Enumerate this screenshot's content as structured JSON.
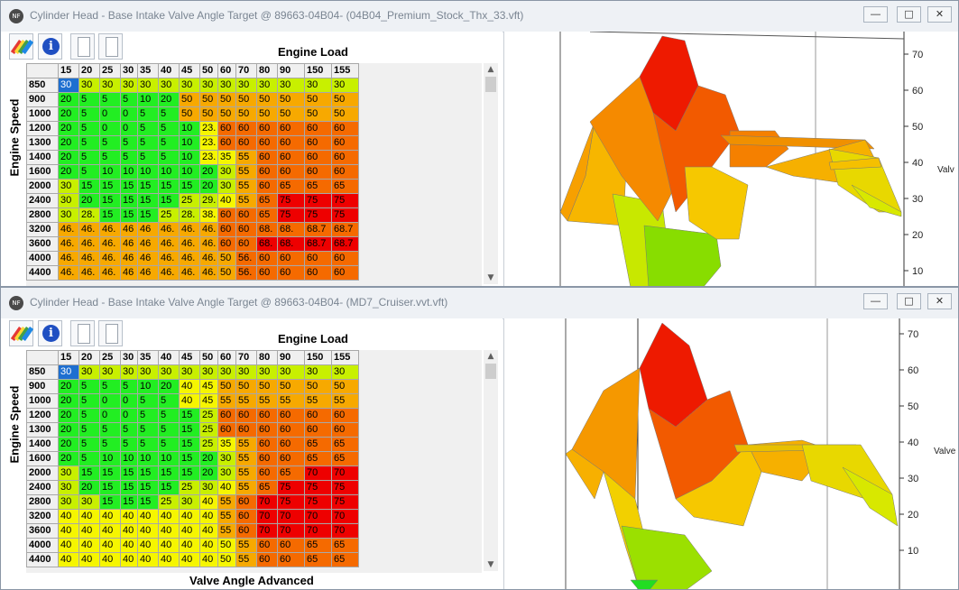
{
  "colors": {
    "c_lime": "#c8f000",
    "c_green": "#22ee22",
    "c_yellow": "#f6f600",
    "c_amber": "#f7a900",
    "c_orange": "#f56a00",
    "c_red": "#ee0000",
    "selection": "#1e6fd0"
  },
  "window_top": {
    "title": "Cylinder Head - Base Intake Valve Angle Target @ 89663-04B04- (04B04_Premium_Stock_Thx_33.vft)",
    "toolbar_icons": [
      "paint-palette-icon",
      "info-icon",
      "blank-page-icon",
      "blank-page-icon"
    ],
    "info_glyph": "i",
    "column_axis_label": "Engine Load",
    "row_axis_label": "Engine Speed",
    "columns": [
      "15",
      "20",
      "25",
      "30",
      "35",
      "40",
      "45",
      "50",
      "60",
      "70",
      "80",
      "90",
      "150",
      "155"
    ],
    "rows": [
      {
        "speed": "850",
        "cells": [
          "30",
          "30",
          "30",
          "30",
          "30",
          "30",
          "30",
          "30",
          "30",
          "30",
          "30",
          "30",
          "30",
          "30"
        ]
      },
      {
        "speed": "900",
        "cells": [
          "20",
          "5",
          "5",
          "5",
          "10",
          "20",
          "50",
          "50",
          "50",
          "50",
          "50",
          "50",
          "50",
          "50"
        ]
      },
      {
        "speed": "1000",
        "cells": [
          "20",
          "5",
          "0",
          "0",
          "5",
          "5",
          "50",
          "50",
          "50",
          "50",
          "50",
          "50",
          "50",
          "50"
        ]
      },
      {
        "speed": "1200",
        "cells": [
          "20",
          "5",
          "0",
          "0",
          "5",
          "5",
          "10",
          "23.",
          "60",
          "60",
          "60",
          "60",
          "60",
          "60"
        ]
      },
      {
        "speed": "1300",
        "cells": [
          "20",
          "5",
          "5",
          "5",
          "5",
          "5",
          "10",
          "23.",
          "60",
          "60",
          "60",
          "60",
          "60",
          "60"
        ]
      },
      {
        "speed": "1400",
        "cells": [
          "20",
          "5",
          "5",
          "5",
          "5",
          "5",
          "10",
          "23.",
          "35",
          "55",
          "60",
          "60",
          "60",
          "60"
        ]
      },
      {
        "speed": "1600",
        "cells": [
          "20",
          "5",
          "10",
          "10",
          "10",
          "10",
          "10",
          "20",
          "30",
          "55",
          "60",
          "60",
          "60",
          "60"
        ]
      },
      {
        "speed": "2000",
        "cells": [
          "30",
          "15",
          "15",
          "15",
          "15",
          "15",
          "15",
          "20",
          "30",
          "55",
          "60",
          "65",
          "65",
          "65"
        ]
      },
      {
        "speed": "2400",
        "cells": [
          "30",
          "20",
          "15",
          "15",
          "15",
          "15",
          "25",
          "29.",
          "40",
          "55",
          "65",
          "75",
          "75",
          "75"
        ]
      },
      {
        "speed": "2800",
        "cells": [
          "30",
          "28.",
          "15",
          "15",
          "15",
          "25",
          "28.",
          "38.",
          "60",
          "60",
          "65",
          "75",
          "75",
          "75"
        ]
      },
      {
        "speed": "3200",
        "cells": [
          "46.",
          "46.",
          "46.",
          "46",
          "46",
          "46.",
          "46.",
          "46.",
          "60",
          "60",
          "68.",
          "68.",
          "68.7",
          "68.7"
        ]
      },
      {
        "speed": "3600",
        "cells": [
          "46.",
          "46.",
          "46.",
          "46",
          "46",
          "46.",
          "46.",
          "46.",
          "60",
          "60",
          "68.",
          "68.",
          "68.7",
          "68.7"
        ]
      },
      {
        "speed": "4000",
        "cells": [
          "46.",
          "46.",
          "46.",
          "46",
          "46",
          "46.",
          "46.",
          "46.",
          "50",
          "56.",
          "60",
          "60",
          "60",
          "60"
        ]
      },
      {
        "speed": "4400",
        "cells": [
          "46.",
          "46.",
          "46.",
          "46",
          "46",
          "46.",
          "46.",
          "46.",
          "50",
          "56.",
          "60",
          "60",
          "60",
          "60"
        ]
      }
    ],
    "row_colors": [
      [
        "c_lime",
        "c_lime",
        "c_lime",
        "c_lime",
        "c_lime",
        "c_lime",
        "c_lime",
        "c_lime",
        "c_lime",
        "c_lime",
        "c_lime",
        "c_lime",
        "c_lime",
        "c_lime"
      ],
      [
        "c_green",
        "c_green",
        "c_green",
        "c_green",
        "c_green",
        "c_green",
        "c_amber",
        "c_amber",
        "c_amber",
        "c_amber",
        "c_amber",
        "c_amber",
        "c_amber",
        "c_amber"
      ],
      [
        "c_green",
        "c_green",
        "c_green",
        "c_green",
        "c_green",
        "c_green",
        "c_amber",
        "c_amber",
        "c_amber",
        "c_amber",
        "c_amber",
        "c_amber",
        "c_amber",
        "c_amber"
      ],
      [
        "c_green",
        "c_green",
        "c_green",
        "c_green",
        "c_green",
        "c_green",
        "c_green",
        "c_yellow",
        "c_orange",
        "c_orange",
        "c_orange",
        "c_orange",
        "c_orange",
        "c_orange"
      ],
      [
        "c_green",
        "c_green",
        "c_green",
        "c_green",
        "c_green",
        "c_green",
        "c_green",
        "c_yellow",
        "c_orange",
        "c_orange",
        "c_orange",
        "c_orange",
        "c_orange",
        "c_orange"
      ],
      [
        "c_green",
        "c_green",
        "c_green",
        "c_green",
        "c_green",
        "c_green",
        "c_green",
        "c_yellow",
        "c_yellow",
        "c_amber",
        "c_orange",
        "c_orange",
        "c_orange",
        "c_orange"
      ],
      [
        "c_green",
        "c_green",
        "c_green",
        "c_green",
        "c_green",
        "c_green",
        "c_green",
        "c_green",
        "c_lime",
        "c_amber",
        "c_orange",
        "c_orange",
        "c_orange",
        "c_orange"
      ],
      [
        "c_lime",
        "c_green",
        "c_green",
        "c_green",
        "c_green",
        "c_green",
        "c_green",
        "c_green",
        "c_lime",
        "c_amber",
        "c_orange",
        "c_orange",
        "c_orange",
        "c_orange"
      ],
      [
        "c_lime",
        "c_green",
        "c_green",
        "c_green",
        "c_green",
        "c_green",
        "c_lime",
        "c_lime",
        "c_yellow",
        "c_amber",
        "c_orange",
        "c_red",
        "c_red",
        "c_red"
      ],
      [
        "c_lime",
        "c_lime",
        "c_green",
        "c_green",
        "c_green",
        "c_lime",
        "c_lime",
        "c_yellow",
        "c_orange",
        "c_orange",
        "c_orange",
        "c_red",
        "c_red",
        "c_red"
      ],
      [
        "c_amber",
        "c_amber",
        "c_amber",
        "c_amber",
        "c_amber",
        "c_amber",
        "c_amber",
        "c_amber",
        "c_orange",
        "c_orange",
        "c_orange",
        "c_orange",
        "c_orange",
        "c_orange"
      ],
      [
        "c_amber",
        "c_amber",
        "c_amber",
        "c_amber",
        "c_amber",
        "c_amber",
        "c_amber",
        "c_amber",
        "c_orange",
        "c_orange",
        "c_red",
        "c_red",
        "c_red",
        "c_red"
      ],
      [
        "c_amber",
        "c_amber",
        "c_amber",
        "c_amber",
        "c_amber",
        "c_amber",
        "c_amber",
        "c_amber",
        "c_amber",
        "c_orange",
        "c_orange",
        "c_orange",
        "c_orange",
        "c_orange"
      ],
      [
        "c_amber",
        "c_amber",
        "c_amber",
        "c_amber",
        "c_amber",
        "c_amber",
        "c_amber",
        "c_amber",
        "c_amber",
        "c_orange",
        "c_orange",
        "c_orange",
        "c_orange",
        "c_orange"
      ]
    ],
    "axis_ticks": [
      "70",
      "60",
      "50",
      "40",
      "30",
      "20",
      "10"
    ],
    "axis_label": "Valv"
  },
  "window_bottom": {
    "title": "Cylinder Head - Base Intake Valve Angle Target @ 89663-04B04- (MD7_Cruiser.vvt.vft)",
    "toolbar_icons": [
      "paint-palette-icon",
      "info-icon",
      "blank-page-icon",
      "blank-page-icon"
    ],
    "info_glyph": "i",
    "column_axis_label": "Engine Load",
    "row_axis_label": "Engine Speed",
    "bottom_label": "Valve Angle Advanced",
    "columns": [
      "15",
      "20",
      "25",
      "30",
      "35",
      "40",
      "45",
      "50",
      "60",
      "70",
      "80",
      "90",
      "150",
      "155"
    ],
    "rows": [
      {
        "speed": "850",
        "cells": [
          "30",
          "30",
          "30",
          "30",
          "30",
          "30",
          "30",
          "30",
          "30",
          "30",
          "30",
          "30",
          "30",
          "30"
        ]
      },
      {
        "speed": "900",
        "cells": [
          "20",
          "5",
          "5",
          "5",
          "10",
          "20",
          "40",
          "45",
          "50",
          "50",
          "50",
          "50",
          "50",
          "50"
        ]
      },
      {
        "speed": "1000",
        "cells": [
          "20",
          "5",
          "0",
          "0",
          "5",
          "5",
          "40",
          "45",
          "55",
          "55",
          "55",
          "55",
          "55",
          "55"
        ]
      },
      {
        "speed": "1200",
        "cells": [
          "20",
          "5",
          "0",
          "0",
          "5",
          "5",
          "15",
          "25",
          "60",
          "60",
          "60",
          "60",
          "60",
          "60"
        ]
      },
      {
        "speed": "1300",
        "cells": [
          "20",
          "5",
          "5",
          "5",
          "5",
          "5",
          "15",
          "25",
          "60",
          "60",
          "60",
          "60",
          "60",
          "60"
        ]
      },
      {
        "speed": "1400",
        "cells": [
          "20",
          "5",
          "5",
          "5",
          "5",
          "5",
          "15",
          "25",
          "35",
          "55",
          "60",
          "60",
          "65",
          "65"
        ]
      },
      {
        "speed": "1600",
        "cells": [
          "20",
          "5",
          "10",
          "10",
          "10",
          "10",
          "15",
          "20",
          "30",
          "55",
          "60",
          "60",
          "65",
          "65"
        ]
      },
      {
        "speed": "2000",
        "cells": [
          "30",
          "15",
          "15",
          "15",
          "15",
          "15",
          "15",
          "20",
          "30",
          "55",
          "60",
          "65",
          "70",
          "70"
        ]
      },
      {
        "speed": "2400",
        "cells": [
          "30",
          "20",
          "15",
          "15",
          "15",
          "15",
          "25",
          "30",
          "40",
          "55",
          "65",
          "75",
          "75",
          "75"
        ]
      },
      {
        "speed": "2800",
        "cells": [
          "30",
          "30",
          "15",
          "15",
          "15",
          "25",
          "30",
          "40",
          "55",
          "60",
          "70",
          "75",
          "75",
          "75"
        ]
      },
      {
        "speed": "3200",
        "cells": [
          "40",
          "40",
          "40",
          "40",
          "40",
          "40",
          "40",
          "40",
          "55",
          "60",
          "70",
          "70",
          "70",
          "70"
        ]
      },
      {
        "speed": "3600",
        "cells": [
          "40",
          "40",
          "40",
          "40",
          "40",
          "40",
          "40",
          "40",
          "55",
          "60",
          "70",
          "70",
          "70",
          "70"
        ]
      },
      {
        "speed": "4000",
        "cells": [
          "40",
          "40",
          "40",
          "40",
          "40",
          "40",
          "40",
          "40",
          "50",
          "55",
          "60",
          "60",
          "65",
          "65"
        ]
      },
      {
        "speed": "4400",
        "cells": [
          "40",
          "40",
          "40",
          "40",
          "40",
          "40",
          "40",
          "40",
          "50",
          "55",
          "60",
          "60",
          "65",
          "65"
        ]
      }
    ],
    "row_colors": [
      [
        "c_lime",
        "c_lime",
        "c_lime",
        "c_lime",
        "c_lime",
        "c_lime",
        "c_lime",
        "c_lime",
        "c_lime",
        "c_lime",
        "c_lime",
        "c_lime",
        "c_lime",
        "c_lime"
      ],
      [
        "c_green",
        "c_green",
        "c_green",
        "c_green",
        "c_green",
        "c_green",
        "c_yellow",
        "c_yellow",
        "c_amber",
        "c_amber",
        "c_amber",
        "c_amber",
        "c_amber",
        "c_amber"
      ],
      [
        "c_green",
        "c_green",
        "c_green",
        "c_green",
        "c_green",
        "c_green",
        "c_yellow",
        "c_yellow",
        "c_amber",
        "c_amber",
        "c_amber",
        "c_amber",
        "c_amber",
        "c_amber"
      ],
      [
        "c_green",
        "c_green",
        "c_green",
        "c_green",
        "c_green",
        "c_green",
        "c_green",
        "c_lime",
        "c_orange",
        "c_orange",
        "c_orange",
        "c_orange",
        "c_orange",
        "c_orange"
      ],
      [
        "c_green",
        "c_green",
        "c_green",
        "c_green",
        "c_green",
        "c_green",
        "c_green",
        "c_lime",
        "c_orange",
        "c_orange",
        "c_orange",
        "c_orange",
        "c_orange",
        "c_orange"
      ],
      [
        "c_green",
        "c_green",
        "c_green",
        "c_green",
        "c_green",
        "c_green",
        "c_green",
        "c_lime",
        "c_yellow",
        "c_amber",
        "c_orange",
        "c_orange",
        "c_orange",
        "c_orange"
      ],
      [
        "c_green",
        "c_green",
        "c_green",
        "c_green",
        "c_green",
        "c_green",
        "c_green",
        "c_green",
        "c_lime",
        "c_amber",
        "c_orange",
        "c_orange",
        "c_orange",
        "c_orange"
      ],
      [
        "c_lime",
        "c_green",
        "c_green",
        "c_green",
        "c_green",
        "c_green",
        "c_green",
        "c_green",
        "c_lime",
        "c_amber",
        "c_orange",
        "c_orange",
        "c_red",
        "c_red"
      ],
      [
        "c_lime",
        "c_green",
        "c_green",
        "c_green",
        "c_green",
        "c_green",
        "c_lime",
        "c_lime",
        "c_yellow",
        "c_amber",
        "c_orange",
        "c_red",
        "c_red",
        "c_red"
      ],
      [
        "c_lime",
        "c_lime",
        "c_green",
        "c_green",
        "c_green",
        "c_lime",
        "c_lime",
        "c_yellow",
        "c_amber",
        "c_orange",
        "c_red",
        "c_red",
        "c_red",
        "c_red"
      ],
      [
        "c_yellow",
        "c_yellow",
        "c_yellow",
        "c_yellow",
        "c_yellow",
        "c_yellow",
        "c_yellow",
        "c_yellow",
        "c_amber",
        "c_orange",
        "c_red",
        "c_red",
        "c_red",
        "c_red"
      ],
      [
        "c_yellow",
        "c_yellow",
        "c_yellow",
        "c_yellow",
        "c_yellow",
        "c_yellow",
        "c_yellow",
        "c_yellow",
        "c_amber",
        "c_orange",
        "c_red",
        "c_red",
        "c_red",
        "c_red"
      ],
      [
        "c_yellow",
        "c_yellow",
        "c_yellow",
        "c_yellow",
        "c_yellow",
        "c_yellow",
        "c_yellow",
        "c_yellow",
        "c_yellow",
        "c_amber",
        "c_orange",
        "c_orange",
        "c_orange",
        "c_orange"
      ],
      [
        "c_yellow",
        "c_yellow",
        "c_yellow",
        "c_yellow",
        "c_yellow",
        "c_yellow",
        "c_yellow",
        "c_yellow",
        "c_yellow",
        "c_amber",
        "c_orange",
        "c_orange",
        "c_orange",
        "c_orange"
      ]
    ],
    "axis_ticks": [
      "70",
      "60",
      "50",
      "40",
      "30",
      "20",
      "10"
    ],
    "axis_label": "Valve"
  }
}
